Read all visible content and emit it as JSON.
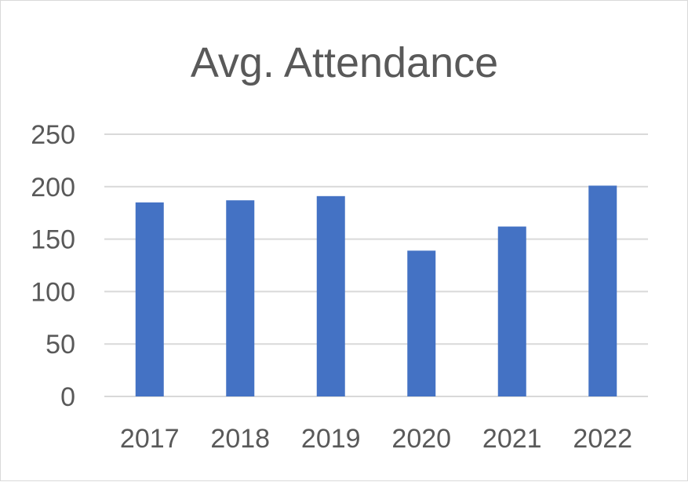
{
  "chart_data": {
    "type": "bar",
    "title": "Avg. Attendance",
    "categories": [
      "2017",
      "2018",
      "2019",
      "2020",
      "2021",
      "2022"
    ],
    "series": [
      {
        "values": [
          185,
          187,
          191,
          139,
          162,
          201
        ]
      }
    ],
    "ylim": [
      0,
      250
    ],
    "yticks": [
      "0",
      "50",
      "100",
      "150",
      "200",
      "250"
    ],
    "grid": true,
    "legend": "none",
    "colors": {
      "bar": "#4472c4",
      "grid": "#d9d9d9",
      "text": "#595959",
      "axis": "#d9d9d9"
    }
  }
}
